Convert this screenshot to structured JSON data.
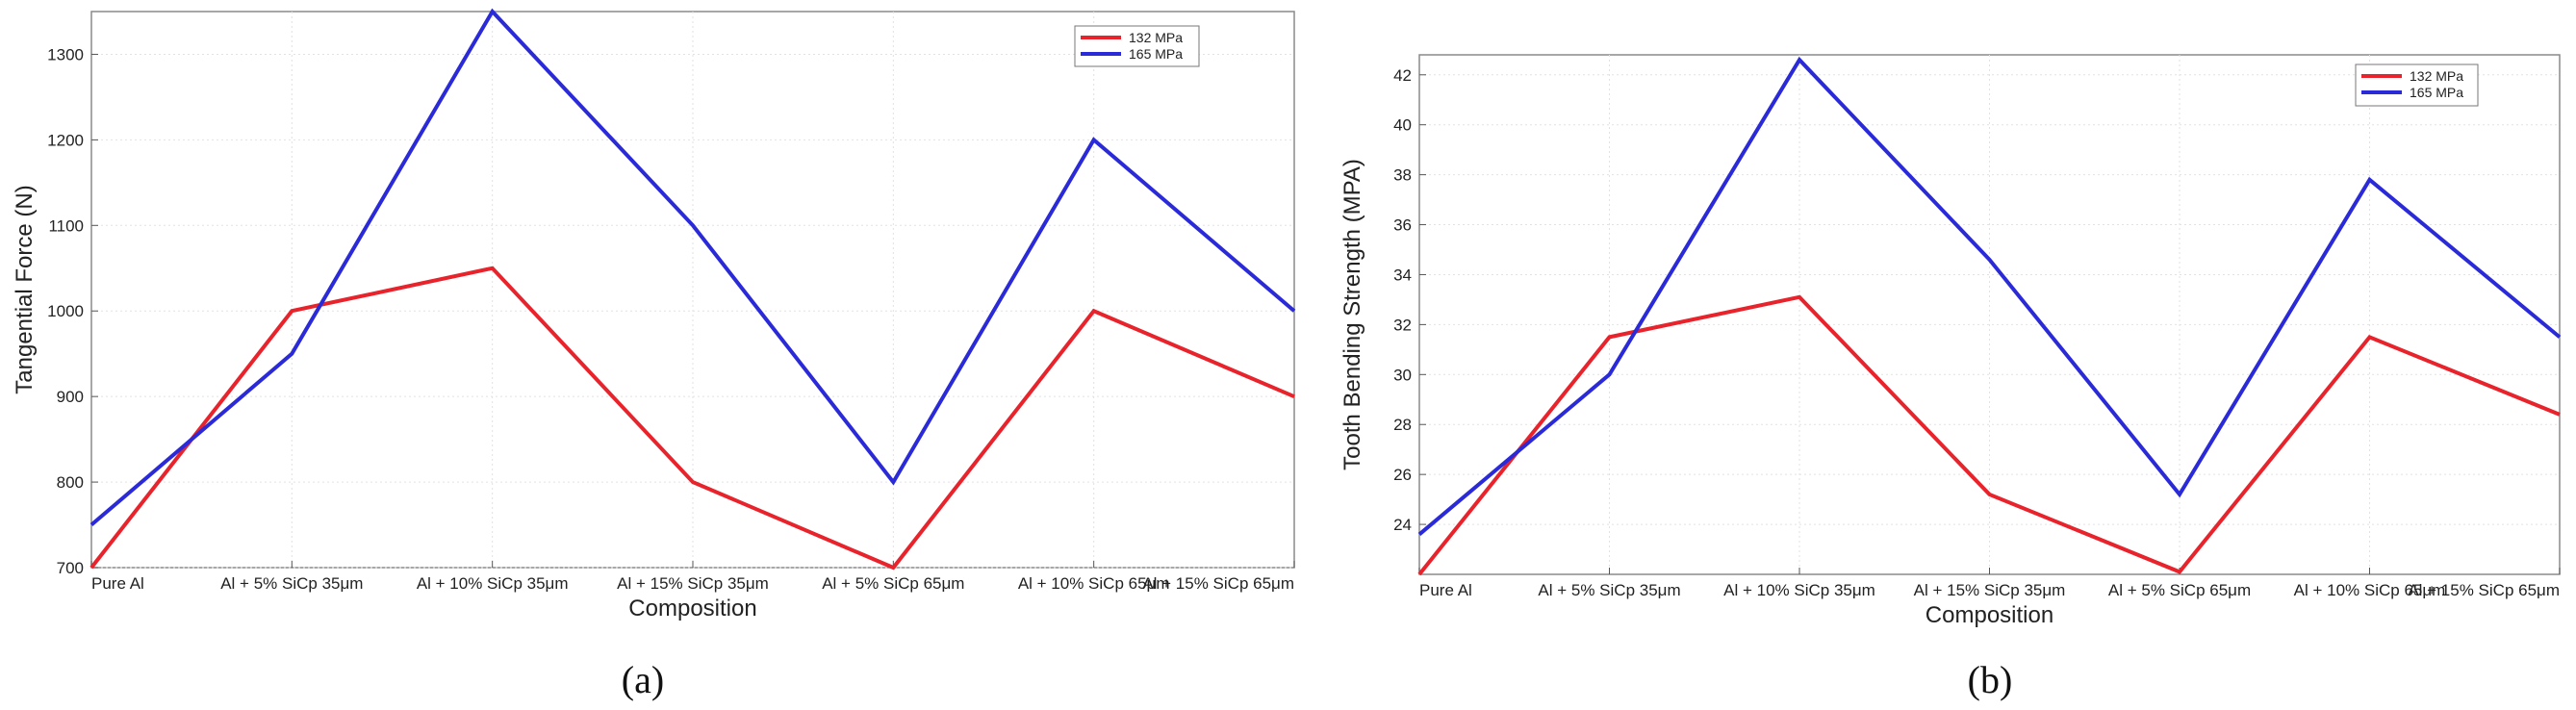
{
  "chart_data": [
    {
      "type": "line",
      "caption": "(a)",
      "xlabel": "Composition",
      "ylabel": "Tangential Force (N)",
      "categories": [
        "Pure Al",
        "Al + 5% SiCp 35μm",
        "Al + 10% SiCp 35μm",
        "Al + 15% SiCp 35μm",
        "Al + 5% SiCp 65μm",
        "Al + 10% SiCp 65μm",
        "Al + 15% SiCp 65μm"
      ],
      "ylim": [
        700,
        1350
      ],
      "yticks": [
        700,
        800,
        900,
        1000,
        1100,
        1200,
        1300
      ],
      "grid": true,
      "legend_position": "top-right",
      "series": [
        {
          "name": "132 MPa",
          "color": "#e8232b",
          "values": [
            700,
            1000,
            1050,
            800,
            700,
            1000,
            900
          ]
        },
        {
          "name": "165 MPa",
          "color": "#2a2ad8",
          "values": [
            750,
            950,
            1350,
            1100,
            800,
            1200,
            1000
          ]
        }
      ]
    },
    {
      "type": "line",
      "caption": "(b)",
      "xlabel": "Composition",
      "ylabel": "Tooth Bending Strength (MPA)",
      "categories": [
        "Pure Al",
        "Al + 5% SiCp 35μm",
        "Al + 10% SiCp 35μm",
        "Al + 15% SiCp 35μm",
        "Al + 5% SiCp 65μm",
        "Al + 10% SiCp 65μm",
        "Al + 15% SiCp 65μm"
      ],
      "ylim": [
        22,
        42.8
      ],
      "yticks": [
        24,
        26,
        28,
        30,
        32,
        34,
        36,
        38,
        40,
        42
      ],
      "grid": true,
      "legend_position": "top-right",
      "series": [
        {
          "name": "132 MPa",
          "color": "#e8232b",
          "values": [
            22,
            31.5,
            33.1,
            25.2,
            22.1,
            31.5,
            28.4
          ]
        },
        {
          "name": "165 MPa",
          "color": "#2a2ad8",
          "values": [
            23.6,
            30,
            42.6,
            34.6,
            25.2,
            37.8,
            31.5
          ]
        }
      ]
    }
  ]
}
